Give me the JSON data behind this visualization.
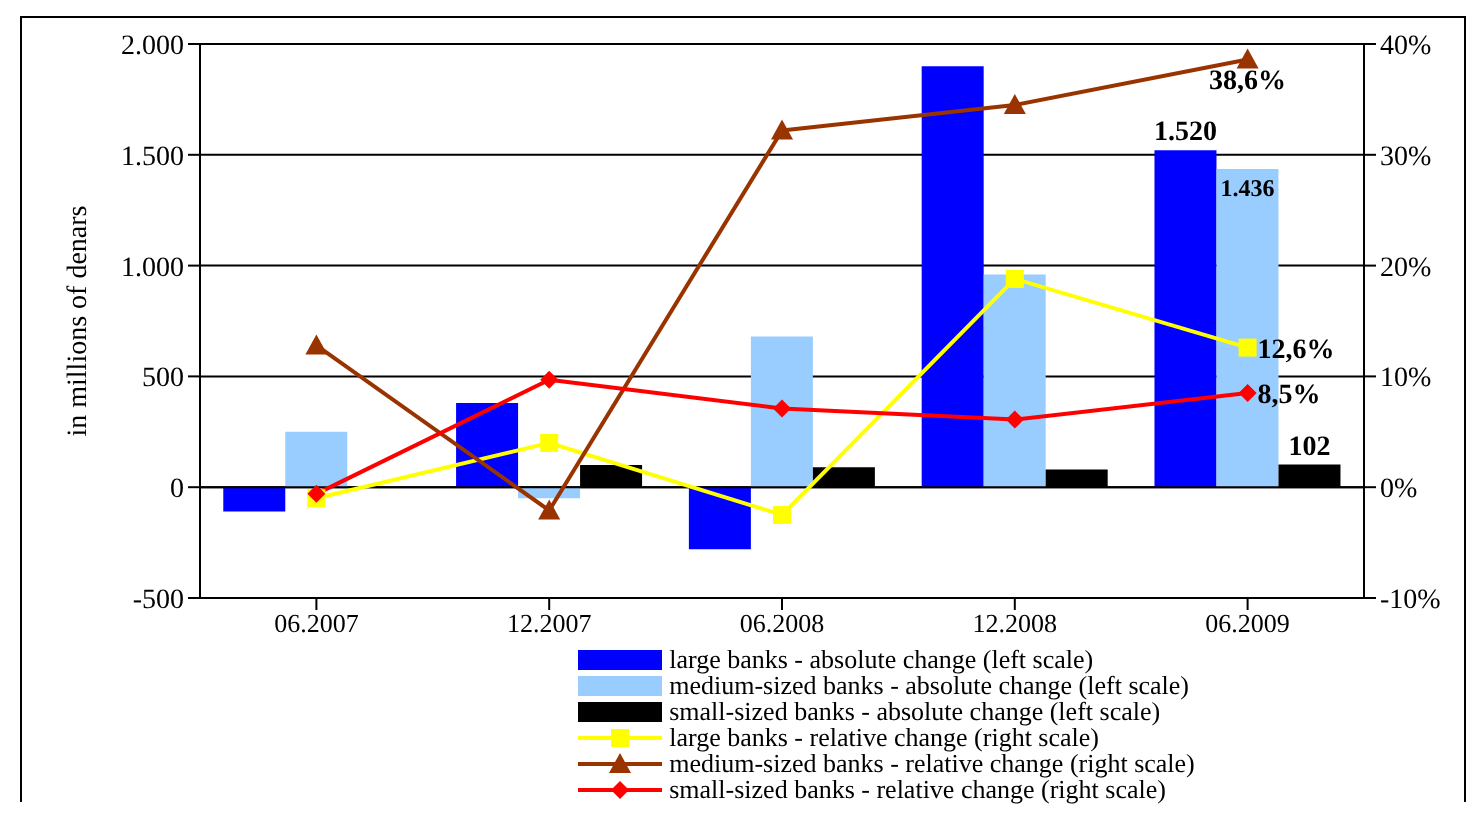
{
  "chart_data": {
    "type": "bar",
    "ylabel": "in millions of denars",
    "categories": [
      "06.2007",
      "12.2007",
      "06.2008",
      "12.2008",
      "06.2009"
    ],
    "series": [
      {
        "name": "large banks - absolute change (left scale)",
        "color": "#0000ff",
        "values": [
          -110,
          380,
          -280,
          1900,
          1520
        ],
        "value_labels": [
          null,
          null,
          null,
          null,
          "1.520"
        ]
      },
      {
        "name": "medium-sized banks - absolute change (left scale)",
        "color": "#99ccff",
        "values": [
          250,
          -50,
          680,
          960,
          1436
        ],
        "value_labels": [
          null,
          null,
          null,
          null,
          "1.436"
        ]
      },
      {
        "name": "small-sized banks - absolute change (left scale)",
        "color": "#000000",
        "values": [
          0,
          100,
          90,
          80,
          102
        ],
        "value_labels": [
          null,
          null,
          null,
          null,
          "102"
        ]
      },
      {
        "name": "large banks - relative change (right scale)",
        "type": "line",
        "axis": "y2",
        "marker": "square",
        "color": "#ffff00",
        "values": [
          -1,
          4,
          -2.5,
          18.8,
          12.6
        ],
        "value_labels": [
          null,
          null,
          null,
          null,
          "12,6%"
        ]
      },
      {
        "name": "medium-sized banks - relative change (right scale)",
        "type": "line",
        "axis": "y2",
        "marker": "triangle",
        "color": "#993300",
        "values": [
          12.8,
          -2.1,
          32.2,
          34.5,
          38.6
        ],
        "value_labels": [
          null,
          null,
          null,
          null,
          "38,6%"
        ]
      },
      {
        "name": "small-sized banks - relative change (right scale)",
        "type": "line",
        "axis": "y2",
        "marker": "diamond",
        "color": "#ff0000",
        "values": [
          -0.6,
          9.7,
          7.1,
          6.1,
          8.5
        ],
        "value_labels": [
          null,
          null,
          null,
          null,
          "8,5%"
        ]
      }
    ],
    "ylim": [
      -500,
      2000
    ],
    "yticks": [
      {
        "value": -500,
        "label": "-500"
      },
      {
        "value": 0,
        "label": "0"
      },
      {
        "value": 500,
        "label": "500"
      },
      {
        "value": 1000,
        "label": "1.000"
      },
      {
        "value": 1500,
        "label": "1.500"
      },
      {
        "value": 2000,
        "label": "2.000"
      }
    ],
    "y2lim": [
      -10,
      40
    ],
    "y2ticks": [
      {
        "value": -10,
        "label": "-10%"
      },
      {
        "value": 0,
        "label": "0%"
      },
      {
        "value": 10,
        "label": "10%"
      },
      {
        "value": 20,
        "label": "20%"
      },
      {
        "value": 30,
        "label": "30%"
      },
      {
        "value": 40,
        "label": "40%"
      }
    ],
    "grid": "y",
    "legend": "bottom"
  }
}
